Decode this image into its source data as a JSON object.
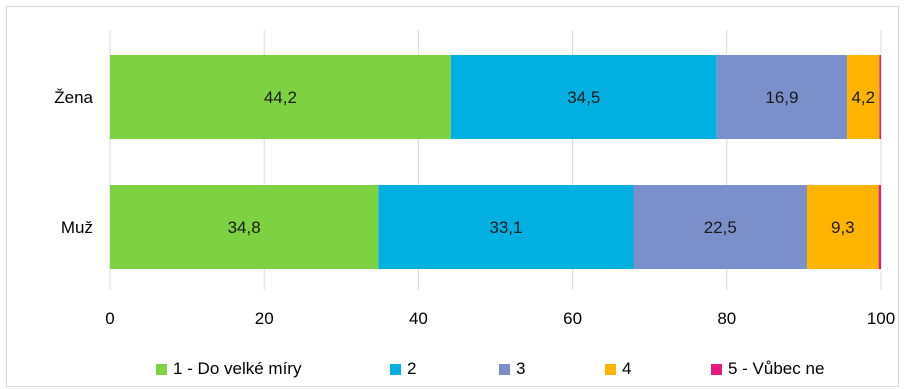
{
  "chart_data": {
    "type": "bar",
    "orientation": "horizontal",
    "stacked": true,
    "title": "",
    "xlabel": "",
    "ylabel": "",
    "categories": [
      "Žena",
      "Muž"
    ],
    "xlim": [
      0,
      100
    ],
    "xticks": [
      "0",
      "20",
      "40",
      "60",
      "80",
      "100"
    ],
    "grid": "vertical",
    "legend_position": "bottom",
    "series": [
      {
        "name": "1 - Do velké míry",
        "color": "#7ed242",
        "values": [
          44.2,
          34.8
        ],
        "labels": [
          "44,2",
          "34,8"
        ]
      },
      {
        "name": "2",
        "color": "#00b0e0",
        "values": [
          34.5,
          33.1
        ],
        "labels": [
          "34,5",
          "33,1"
        ]
      },
      {
        "name": "3",
        "color": "#7b8fcb",
        "values": [
          16.9,
          22.5
        ],
        "labels": [
          "16,9",
          "22,5"
        ]
      },
      {
        "name": "4",
        "color": "#ffb400",
        "values": [
          4.2,
          9.3
        ],
        "labels": [
          "4,2",
          "9,3"
        ]
      },
      {
        "name": "5 - Vůbec ne",
        "color": "#e6197f",
        "values": [
          0.2,
          0.3
        ],
        "labels": [
          "",
          ""
        ]
      }
    ]
  }
}
